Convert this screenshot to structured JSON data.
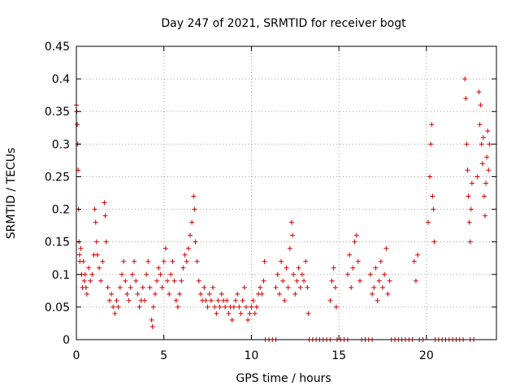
{
  "chart_data": {
    "type": "scatter",
    "title": "Day 247 of 2021, SRMTID for receiver bogt",
    "xlabel": "GPS time / hours",
    "ylabel": "SRMTID / TECUs",
    "xlim": [
      0,
      24
    ],
    "ylim": [
      0,
      0.45
    ],
    "xticks": [
      0,
      5,
      10,
      15,
      20
    ],
    "xtick_labels": [
      "0",
      "5",
      "10",
      "15",
      "20"
    ],
    "yticks": [
      0,
      0.05,
      0.1,
      0.15,
      0.2,
      0.25,
      0.3,
      0.35,
      0.4,
      0.45
    ],
    "ytick_labels": [
      "0",
      "0.05",
      "0.1",
      "0.15",
      "0.2",
      "0.25",
      "0.3",
      "0.35",
      "0.4",
      "0.45"
    ],
    "grid": true,
    "marker": "+",
    "series": [
      {
        "name": "SRMTID",
        "color": "#d40000",
        "points": [
          [
            0.0,
            0.36
          ],
          [
            0.02,
            0.35
          ],
          [
            0.05,
            0.33
          ],
          [
            0.08,
            0.3
          ],
          [
            0.1,
            0.26
          ],
          [
            0.12,
            0.2
          ],
          [
            0.15,
            0.15
          ],
          [
            0.18,
            0.13
          ],
          [
            0.2,
            0.12
          ],
          [
            0.25,
            0.14
          ],
          [
            0.3,
            0.1
          ],
          [
            0.35,
            0.08
          ],
          [
            0.4,
            0.12
          ],
          [
            0.45,
            0.09
          ],
          [
            0.5,
            0.1
          ],
          [
            0.55,
            0.08
          ],
          [
            0.6,
            0.07
          ],
          [
            0.7,
            0.11
          ],
          [
            0.8,
            0.09
          ],
          [
            0.9,
            0.1
          ],
          [
            1.0,
            0.13
          ],
          [
            1.05,
            0.2
          ],
          [
            1.1,
            0.18
          ],
          [
            1.15,
            0.15
          ],
          [
            1.2,
            0.13
          ],
          [
            1.3,
            0.11
          ],
          [
            1.4,
            0.09
          ],
          [
            1.5,
            0.12
          ],
          [
            1.6,
            0.21
          ],
          [
            1.65,
            0.19
          ],
          [
            1.7,
            0.15
          ],
          [
            1.8,
            0.08
          ],
          [
            1.9,
            0.06
          ],
          [
            2.0,
            0.07
          ],
          [
            2.1,
            0.05
          ],
          [
            2.2,
            0.04
          ],
          [
            2.3,
            0.06
          ],
          [
            2.4,
            0.05
          ],
          [
            2.5,
            0.08
          ],
          [
            2.6,
            0.1
          ],
          [
            2.7,
            0.12
          ],
          [
            2.8,
            0.09
          ],
          [
            2.9,
            0.07
          ],
          [
            3.0,
            0.06
          ],
          [
            3.1,
            0.08
          ],
          [
            3.2,
            0.1
          ],
          [
            3.3,
            0.12
          ],
          [
            3.4,
            0.09
          ],
          [
            3.5,
            0.07
          ],
          [
            3.6,
            0.05
          ],
          [
            3.7,
            0.06
          ],
          [
            3.8,
            0.08
          ],
          [
            3.9,
            0.06
          ],
          [
            4.0,
            0.1
          ],
          [
            4.1,
            0.12
          ],
          [
            4.2,
            0.08
          ],
          [
            4.3,
            0.03
          ],
          [
            4.35,
            0.02
          ],
          [
            4.4,
            0.05
          ],
          [
            4.5,
            0.07
          ],
          [
            4.6,
            0.09
          ],
          [
            4.7,
            0.11
          ],
          [
            4.8,
            0.1
          ],
          [
            4.9,
            0.08
          ],
          [
            5.0,
            0.12
          ],
          [
            5.1,
            0.14
          ],
          [
            5.2,
            0.09
          ],
          [
            5.3,
            0.07
          ],
          [
            5.4,
            0.1
          ],
          [
            5.5,
            0.12
          ],
          [
            5.6,
            0.09
          ],
          [
            5.7,
            0.06
          ],
          [
            5.8,
            0.05
          ],
          [
            5.9,
            0.07
          ],
          [
            6.0,
            0.09
          ],
          [
            6.1,
            0.11
          ],
          [
            6.2,
            0.13
          ],
          [
            6.3,
            0.12
          ],
          [
            6.4,
            0.14
          ],
          [
            6.5,
            0.16
          ],
          [
            6.6,
            0.18
          ],
          [
            6.7,
            0.22
          ],
          [
            6.75,
            0.2
          ],
          [
            6.8,
            0.15
          ],
          [
            6.9,
            0.12
          ],
          [
            7.0,
            0.09
          ],
          [
            7.1,
            0.07
          ],
          [
            7.2,
            0.06
          ],
          [
            7.3,
            0.08
          ],
          [
            7.4,
            0.06
          ],
          [
            7.5,
            0.05
          ],
          [
            7.6,
            0.07
          ],
          [
            7.7,
            0.06
          ],
          [
            7.8,
            0.08
          ],
          [
            7.9,
            0.05
          ],
          [
            8.0,
            0.04
          ],
          [
            8.1,
            0.06
          ],
          [
            8.2,
            0.05
          ],
          [
            8.3,
            0.07
          ],
          [
            8.4,
            0.06
          ],
          [
            8.5,
            0.05
          ],
          [
            8.6,
            0.06
          ],
          [
            8.7,
            0.04
          ],
          [
            8.8,
            0.05
          ],
          [
            8.9,
            0.03
          ],
          [
            9.0,
            0.05
          ],
          [
            9.1,
            0.06
          ],
          [
            9.2,
            0.07
          ],
          [
            9.3,
            0.05
          ],
          [
            9.4,
            0.04
          ],
          [
            9.5,
            0.06
          ],
          [
            9.6,
            0.08
          ],
          [
            9.7,
            0.05
          ],
          [
            9.8,
            0.03
          ],
          [
            9.9,
            0.04
          ],
          [
            10.0,
            0.05
          ],
          [
            10.1,
            0.06
          ],
          [
            10.2,
            0.04
          ],
          [
            10.3,
            0.05
          ],
          [
            10.4,
            0.07
          ],
          [
            10.5,
            0.08
          ],
          [
            10.6,
            0.07
          ],
          [
            10.7,
            0.09
          ],
          [
            10.75,
            0.12
          ],
          [
            10.8,
            0.0
          ],
          [
            11.0,
            0.0
          ],
          [
            11.2,
            0.0
          ],
          [
            11.4,
            0.0
          ],
          [
            11.4,
            0.08
          ],
          [
            11.5,
            0.1
          ],
          [
            11.6,
            0.07
          ],
          [
            11.7,
            0.12
          ],
          [
            11.8,
            0.09
          ],
          [
            11.9,
            0.06
          ],
          [
            12.0,
            0.11
          ],
          [
            12.1,
            0.08
          ],
          [
            12.2,
            0.14
          ],
          [
            12.3,
            0.18
          ],
          [
            12.35,
            0.16
          ],
          [
            12.4,
            0.1
          ],
          [
            12.5,
            0.07
          ],
          [
            12.6,
            0.09
          ],
          [
            12.7,
            0.11
          ],
          [
            12.8,
            0.08
          ],
          [
            12.9,
            0.1
          ],
          [
            13.0,
            0.09
          ],
          [
            13.1,
            0.12
          ],
          [
            13.2,
            0.08
          ],
          [
            13.25,
            0.04
          ],
          [
            13.3,
            0.0
          ],
          [
            13.5,
            0.0
          ],
          [
            13.7,
            0.0
          ],
          [
            13.9,
            0.0
          ],
          [
            14.1,
            0.0
          ],
          [
            14.3,
            0.0
          ],
          [
            14.5,
            0.0
          ],
          [
            14.5,
            0.06
          ],
          [
            14.6,
            0.09
          ],
          [
            14.7,
            0.11
          ],
          [
            14.8,
            0.08
          ],
          [
            14.85,
            0.05
          ],
          [
            14.9,
            0.0
          ],
          [
            15.1,
            0.0
          ],
          [
            15.3,
            0.0
          ],
          [
            15.5,
            0.0
          ],
          [
            15.5,
            0.1
          ],
          [
            15.6,
            0.13
          ],
          [
            15.7,
            0.08
          ],
          [
            15.8,
            0.11
          ],
          [
            15.9,
            0.15
          ],
          [
            16.0,
            0.16
          ],
          [
            16.1,
            0.12
          ],
          [
            16.2,
            0.09
          ],
          [
            16.3,
            0.0
          ],
          [
            16.5,
            0.0
          ],
          [
            16.7,
            0.0
          ],
          [
            16.9,
            0.0
          ],
          [
            16.8,
            0.1
          ],
          [
            16.9,
            0.07
          ],
          [
            17.0,
            0.08
          ],
          [
            17.1,
            0.11
          ],
          [
            17.2,
            0.06
          ],
          [
            17.3,
            0.09
          ],
          [
            17.4,
            0.12
          ],
          [
            17.5,
            0.08
          ],
          [
            17.6,
            0.1
          ],
          [
            17.7,
            0.14
          ],
          [
            17.8,
            0.07
          ],
          [
            17.9,
            0.09
          ],
          [
            18.0,
            0.0
          ],
          [
            18.2,
            0.0
          ],
          [
            18.4,
            0.0
          ],
          [
            18.6,
            0.0
          ],
          [
            18.8,
            0.0
          ],
          [
            19.0,
            0.0
          ],
          [
            19.2,
            0.0
          ],
          [
            19.3,
            0.12
          ],
          [
            19.4,
            0.09
          ],
          [
            19.5,
            0.13
          ],
          [
            19.6,
            0.0
          ],
          [
            19.8,
            0.0
          ],
          [
            20.1,
            0.18
          ],
          [
            20.2,
            0.25
          ],
          [
            20.25,
            0.3
          ],
          [
            20.3,
            0.33
          ],
          [
            20.35,
            0.22
          ],
          [
            20.4,
            0.2
          ],
          [
            20.45,
            0.15
          ],
          [
            20.5,
            0.0
          ],
          [
            20.7,
            0.0
          ],
          [
            20.9,
            0.0
          ],
          [
            21.1,
            0.0
          ],
          [
            21.3,
            0.0
          ],
          [
            21.5,
            0.0
          ],
          [
            21.7,
            0.0
          ],
          [
            21.9,
            0.0
          ],
          [
            22.1,
            0.0
          ],
          [
            22.2,
            0.4
          ],
          [
            22.25,
            0.37
          ],
          [
            22.3,
            0.3
          ],
          [
            22.35,
            0.26
          ],
          [
            22.4,
            0.22
          ],
          [
            22.45,
            0.18
          ],
          [
            22.5,
            0.15
          ],
          [
            22.55,
            0.2
          ],
          [
            22.6,
            0.24
          ],
          [
            22.5,
            0.0
          ],
          [
            22.7,
            0.0
          ],
          [
            22.9,
            0.25
          ],
          [
            23.0,
            0.38
          ],
          [
            23.05,
            0.33
          ],
          [
            23.1,
            0.36
          ],
          [
            23.15,
            0.3
          ],
          [
            23.2,
            0.27
          ],
          [
            23.25,
            0.31
          ],
          [
            23.3,
            0.22
          ],
          [
            23.35,
            0.19
          ],
          [
            23.4,
            0.24
          ],
          [
            23.45,
            0.28
          ],
          [
            23.5,
            0.32
          ],
          [
            23.55,
            0.26
          ],
          [
            23.6,
            0.3
          ]
        ]
      }
    ]
  }
}
